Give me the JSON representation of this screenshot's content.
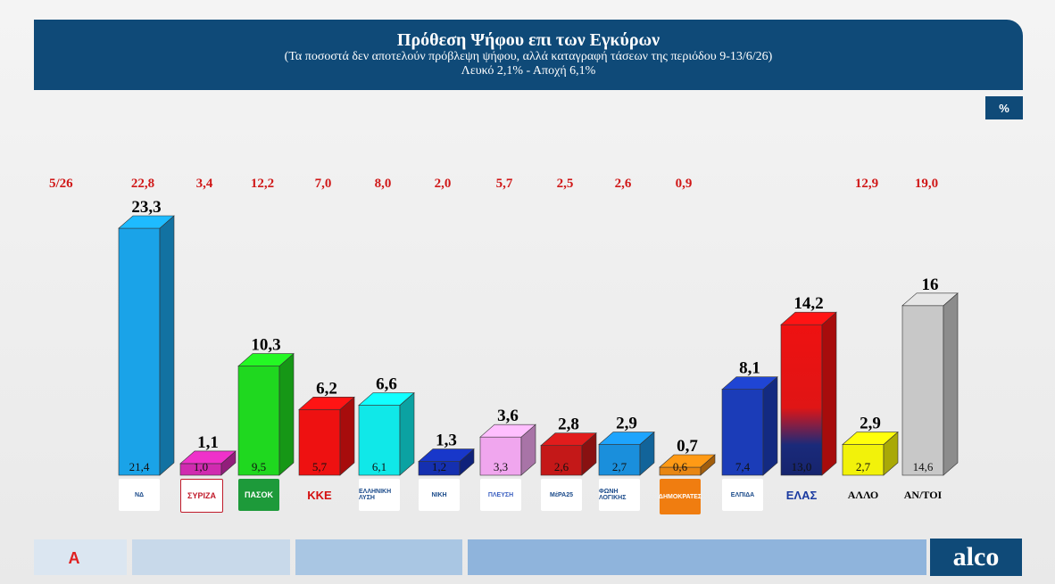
{
  "header": {
    "title": "Πρόθεση Ψήφου επι των Εγκύρων",
    "subtitle": "(Τα ποσοστά δεν αποτελούν πρόβλεψη ψήφου, αλλά καταγραφή τάσεων της περιόδου  9-13/6/26)",
    "note": "Λευκό 2,1% - Αποχή 6,1%"
  },
  "badge": "%",
  "prev_label": "5/26",
  "footer": {
    "brand": "alco",
    "channel_logo": "A"
  },
  "chart_data": {
    "type": "bar",
    "categories": [
      "ΝΔ",
      "ΣΥΡΙΖΑ",
      "ΠΑΣΟΚ",
      "ΚΚΕ",
      "Ελληνική Λύση",
      "ΝΙΚΗ",
      "Πλεύση Ελευθερίας",
      "ΜέΡΑ25",
      "Φωνή Λογικής",
      "Δημοκράτες",
      "Ελπίδα",
      "ΕΛΑΣ",
      "ΑΛΛΟ",
      "ΑΝ/ΤΟΙ"
    ],
    "values_text": [
      "23,3",
      "1,1",
      "10,3",
      "6,2",
      "6,6",
      "1,3",
      "3,6",
      "2,8",
      "2,9",
      "0,7",
      "8,1",
      "14,2",
      "2,9",
      "16"
    ],
    "values": [
      23.3,
      1.1,
      10.3,
      6.2,
      6.6,
      1.3,
      3.6,
      2.8,
      2.9,
      0.7,
      8.1,
      14.2,
      2.9,
      16
    ],
    "inner_text": [
      "21,4",
      "1,0",
      "9,5",
      "5,7",
      "6,1",
      "1,2",
      "3,3",
      "2,6",
      "2,7",
      "0,6",
      "7,4",
      "13,0",
      "2,7",
      "14,6"
    ],
    "previous_text": [
      "22,8",
      "3,4",
      "12,2",
      "7,0",
      "8,0",
      "2,0",
      "5,7",
      "2,5",
      "2,6",
      "0,9",
      "",
      "",
      "12,9",
      "19,0"
    ],
    "colors": [
      "#1aa3e8",
      "#d02bb0",
      "#1fd81f",
      "#ee1111",
      "#10e8e8",
      "#1530b0",
      "#f0a6ee",
      "#c41818",
      "#1a8fdc",
      "#e88612",
      "#1b3cb8",
      "#ee1111",
      "#f2f20a",
      "#c8c8c8"
    ],
    "logo_labels": [
      "ΝΔ",
      "ΣΥΡΙΖΑ",
      "ΠΑΣΟΚ",
      "ΚΚΕ",
      "ΕΛΛΗΝΙΚΗ ΛΥΣΗ",
      "ΝΙΚΗ",
      "ΠΛΕΥΣΗ",
      "ΜέΡΑ25",
      "ΦΩΝΗ ΛΟΓΙΚΗΣ",
      "ΔΗΜΟΚΡΑΤΕΣ",
      "ΕΛΠΙΔΑ",
      "ΕΛΑΣ",
      "ΑΛΛΟ",
      "ΑΝ/ΤΟΙ"
    ],
    "ylim": [
      0,
      25
    ]
  }
}
